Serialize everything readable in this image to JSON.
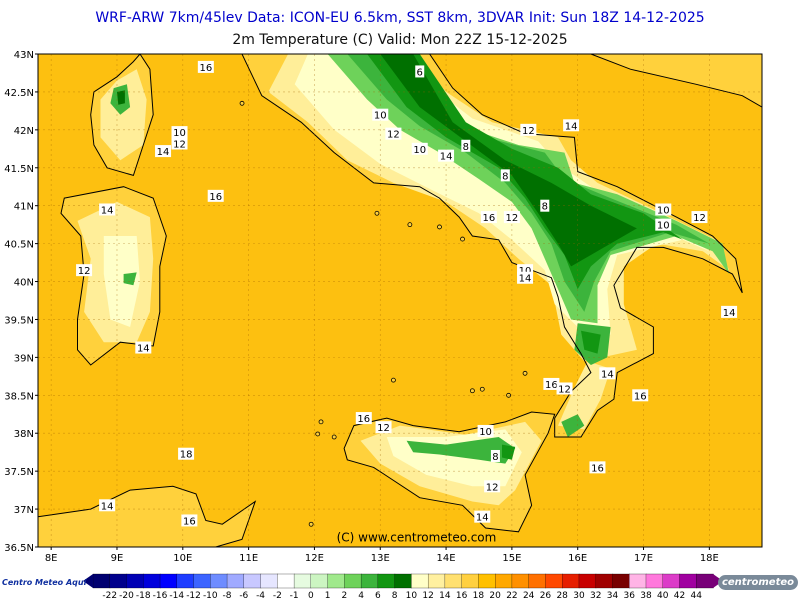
{
  "header": {
    "line1": "WRF-ARW 7km/45lev   Data: ICON-EU 6.5km, SST 8km, 3DVAR   Init: Sun 18Z 14-12-2025",
    "line2": "2m Temperature (C)   Valid: Mon 22Z 15-12-2025"
  },
  "map": {
    "lon_range": [
      7.8,
      18.8
    ],
    "lat_range": [
      36.5,
      43.0
    ],
    "lon_ticks": [
      "8E",
      "9E",
      "10E",
      "11E",
      "12E",
      "13E",
      "14E",
      "15E",
      "16E",
      "17E",
      "18E"
    ],
    "lat_ticks": [
      "43N",
      "42.5N",
      "42N",
      "41.5N",
      "41N",
      "40.5N",
      "40N",
      "39.5N",
      "39N",
      "38.5N",
      "38N",
      "37.5N",
      "37N",
      "36.5N"
    ],
    "copyright": "(C) www.centrometeo.com",
    "contour_labels": [
      {
        "text": "16",
        "lon": 10.35,
        "lat": 42.83
      },
      {
        "text": "6",
        "lon": 13.6,
        "lat": 42.77
      },
      {
        "text": "10",
        "lon": 13.0,
        "lat": 42.2
      },
      {
        "text": "12",
        "lon": 13.2,
        "lat": 41.95
      },
      {
        "text": "10",
        "lon": 9.95,
        "lat": 41.97
      },
      {
        "text": "12",
        "lon": 9.95,
        "lat": 41.82
      },
      {
        "text": "14",
        "lon": 9.7,
        "lat": 41.72
      },
      {
        "text": "10",
        "lon": 13.6,
        "lat": 41.75
      },
      {
        "text": "14",
        "lon": 14.0,
        "lat": 41.66
      },
      {
        "text": "8",
        "lon": 14.3,
        "lat": 41.79
      },
      {
        "text": "12",
        "lon": 15.25,
        "lat": 42.0
      },
      {
        "text": "14",
        "lon": 15.9,
        "lat": 42.06
      },
      {
        "text": "8",
        "lon": 14.9,
        "lat": 41.4
      },
      {
        "text": "16",
        "lon": 10.5,
        "lat": 41.13
      },
      {
        "text": "14",
        "lon": 8.85,
        "lat": 40.95
      },
      {
        "text": "16",
        "lon": 14.65,
        "lat": 40.85
      },
      {
        "text": "12",
        "lon": 15.0,
        "lat": 40.85
      },
      {
        "text": "8",
        "lon": 15.5,
        "lat": 41.0
      },
      {
        "text": "10",
        "lon": 17.3,
        "lat": 40.95
      },
      {
        "text": "12",
        "lon": 17.85,
        "lat": 40.85
      },
      {
        "text": "10",
        "lon": 17.3,
        "lat": 40.75
      },
      {
        "text": "12",
        "lon": 8.5,
        "lat": 40.15
      },
      {
        "text": "10",
        "lon": 15.2,
        "lat": 40.15
      },
      {
        "text": "14",
        "lon": 15.2,
        "lat": 40.05
      },
      {
        "text": "14",
        "lon": 18.3,
        "lat": 39.6
      },
      {
        "text": "14",
        "lon": 9.4,
        "lat": 39.13
      },
      {
        "text": "16",
        "lon": 15.6,
        "lat": 38.65
      },
      {
        "text": "12",
        "lon": 15.8,
        "lat": 38.59
      },
      {
        "text": "14",
        "lon": 16.45,
        "lat": 38.79
      },
      {
        "text": "16",
        "lon": 16.95,
        "lat": 38.5
      },
      {
        "text": "16",
        "lon": 12.75,
        "lat": 38.2
      },
      {
        "text": "12",
        "lon": 13.05,
        "lat": 38.08
      },
      {
        "text": "10",
        "lon": 14.6,
        "lat": 38.03
      },
      {
        "text": "8",
        "lon": 14.75,
        "lat": 37.7
      },
      {
        "text": "18",
        "lon": 10.05,
        "lat": 37.73
      },
      {
        "text": "16",
        "lon": 16.3,
        "lat": 37.55
      },
      {
        "text": "12",
        "lon": 14.7,
        "lat": 37.3
      },
      {
        "text": "14",
        "lon": 8.85,
        "lat": 37.05
      },
      {
        "text": "16",
        "lon": 10.1,
        "lat": 36.85
      },
      {
        "text": "14",
        "lon": 14.55,
        "lat": 36.9
      }
    ]
  },
  "colorbar": {
    "values": [
      "-22",
      "-20",
      "-18",
      "-16",
      "-14",
      "-12",
      "-10",
      "-8",
      "-6",
      "-4",
      "-2",
      "-1",
      "0",
      "1",
      "2",
      "4",
      "6",
      "8",
      "10",
      "12",
      "14",
      "16",
      "18",
      "20",
      "22",
      "24",
      "26",
      "28",
      "30",
      "32",
      "34",
      "36",
      "38",
      "40",
      "42",
      "44"
    ],
    "colors": [
      "#000070",
      "#00008c",
      "#0000b4",
      "#0000dc",
      "#0000ff",
      "#1e3cff",
      "#3c64ff",
      "#6e8cff",
      "#a0aaff",
      "#c8c8ff",
      "#e6e6ff",
      "#ffffff",
      "#e6fbe0",
      "#ccf5c2",
      "#a0e98c",
      "#6ed25a",
      "#3cb43c",
      "#129612",
      "#007000",
      "#ffffc8",
      "#fff0a0",
      "#ffe070",
      "#ffd040",
      "#ffc000",
      "#ffa800",
      "#ff9000",
      "#ff7000",
      "#ff4800",
      "#e61e00",
      "#c80000",
      "#a00000",
      "#780000",
      "#ffb4e6",
      "#ff78dc",
      "#dc3cc8",
      "#a000a0",
      "#780078"
    ]
  },
  "colors": {
    "sea": "#fdc010",
    "land_warm": "#ffd13c",
    "land_mild": "#ffee99",
    "land_cool": "#ffffc8",
    "green_light": "#6ed25a",
    "green_mid": "#3cb43c",
    "green_dark": "#129612",
    "green_deep": "#007000",
    "coast": "#000000",
    "label_box": "#ffffff"
  },
  "logos": {
    "left": "Centro Meteo Aqui",
    "right": "centrometeo"
  }
}
